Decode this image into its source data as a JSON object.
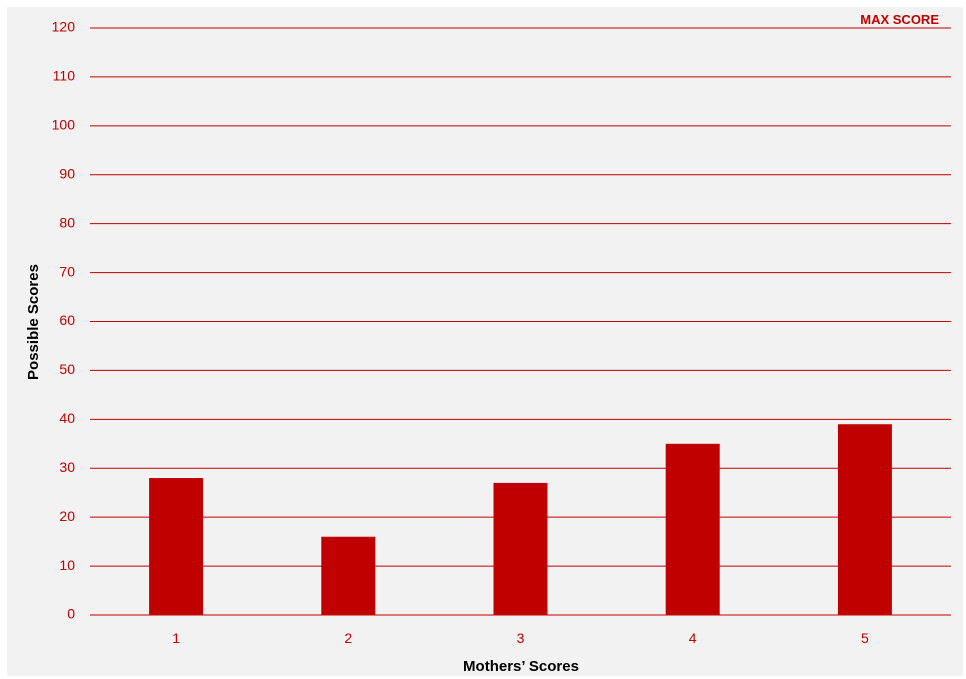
{
  "chart_data": {
    "type": "bar",
    "categories": [
      "1",
      "2",
      "3",
      "4",
      "5"
    ],
    "values": [
      28,
      16,
      27,
      35,
      39
    ],
    "xlabel": "Mothers’ Scores",
    "ylabel": "Possible Scores",
    "ylim": [
      0,
      120
    ],
    "yticks": [
      "0",
      "10",
      "20",
      "30",
      "40",
      "50",
      "60",
      "70",
      "80",
      "90",
      "100",
      "110",
      "120"
    ],
    "legend": {
      "label": "MAX SCORE",
      "placement": "top-right"
    },
    "grid": true,
    "colors": {
      "bar": "#c00000",
      "grid": "#c00000",
      "background": "#f2f2f2",
      "tick_text": "#c00000"
    }
  }
}
